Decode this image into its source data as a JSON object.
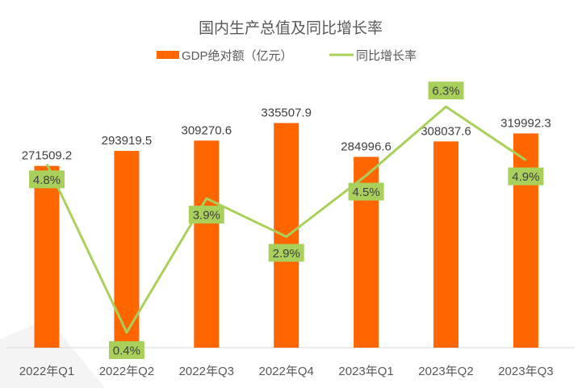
{
  "chart_data": {
    "type": "bar+line",
    "title": "国内生产总值及同比增长率",
    "categories": [
      "2022年Q1",
      "2022年Q2",
      "2022年Q3",
      "2022年Q4",
      "2023年Q1",
      "2023年Q2",
      "2023年Q3"
    ],
    "series": [
      {
        "name": "GDP绝对额（亿元）",
        "type": "bar",
        "color": "#FF6600",
        "values": [
          271509.2,
          293919.5,
          309270.6,
          335507.9,
          284996.6,
          308037.6,
          319992.3
        ],
        "labels": [
          "271509.2",
          "293919.5",
          "309270.6",
          "335507.9",
          "284996.6",
          "308037.6",
          "319992.3"
        ]
      },
      {
        "name": "同比增长率",
        "type": "line",
        "color": "#A9D05A",
        "values": [
          4.8,
          0.4,
          3.9,
          2.9,
          4.5,
          6.3,
          4.9
        ],
        "labels": [
          "4.8%",
          "0.4%",
          "3.9%",
          "2.9%",
          "4.5%",
          "6.3%",
          "4.9%"
        ]
      }
    ],
    "ylim_left": [
      0,
      400000
    ],
    "ylim_right": [
      0,
      7
    ],
    "legend": "top-center",
    "grid": false
  }
}
